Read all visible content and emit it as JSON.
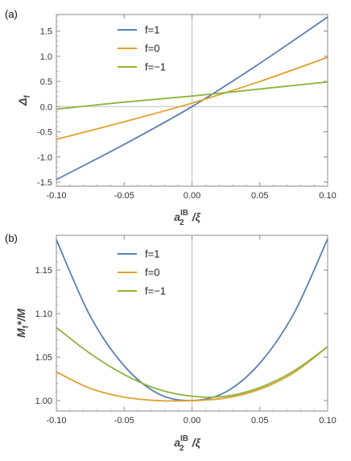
{
  "chart_data": [
    {
      "type": "line",
      "panel_label": "(a)",
      "ylabel": "Δf",
      "xlabel_parts": {
        "base": "a",
        "sub": "2",
        "sup": "IB",
        "suffix": "/ξ"
      },
      "xlim": [
        -0.1,
        0.1
      ],
      "ylim": [
        -1.58,
        1.83
      ],
      "xticks": [
        -0.1,
        -0.05,
        0.0,
        0.05,
        0.1
      ],
      "xtick_labels": [
        "-0.10",
        "-0.05",
        "0.00",
        "0.05",
        "0.10"
      ],
      "yticks": [
        -1.5,
        -1.0,
        -0.5,
        0.0,
        0.5,
        1.0,
        1.5
      ],
      "ytick_labels": [
        "-1.5",
        "-1.0",
        "-0.5",
        "0.0",
        "0.5",
        "1.0",
        "1.5"
      ],
      "legend_position": "top-left",
      "x": [
        -0.1,
        -0.05,
        0.0,
        0.05,
        0.1
      ],
      "series": [
        {
          "name": "f=1",
          "color": "#5b7fb5",
          "values": [
            -1.45,
            -0.75,
            0.0,
            0.86,
            1.78
          ]
        },
        {
          "name": "f=0",
          "color": "#e39f2e",
          "values": [
            -0.65,
            -0.3,
            0.07,
            0.5,
            0.98
          ]
        },
        {
          "name": "f=−1",
          "color": "#8db43f",
          "values": [
            -0.05,
            0.09,
            0.21,
            0.35,
            0.49
          ]
        }
      ]
    },
    {
      "type": "line",
      "panel_label": "(b)",
      "ylabel": "Mf*/M",
      "ylabel_parts": {
        "base": "M",
        "sub": "f",
        "suffix": "*/M"
      },
      "xlabel_parts": {
        "base": "a",
        "sub": "2",
        "sup": "IB",
        "suffix": "/ξ"
      },
      "xlim": [
        -0.1,
        0.1
      ],
      "ylim": [
        0.988,
        1.19
      ],
      "xticks": [
        -0.1,
        -0.05,
        0.0,
        0.05,
        0.1
      ],
      "xtick_labels": [
        "-0.10",
        "-0.05",
        "0.00",
        "0.05",
        "0.10"
      ],
      "yticks": [
        1.0,
        1.05,
        1.1,
        1.15
      ],
      "ytick_labels": [
        "1.00",
        "1.05",
        "1.10",
        "1.15"
      ],
      "legend_position": "top-left",
      "x": [
        -0.1,
        -0.075,
        -0.05,
        -0.025,
        0.0,
        0.025,
        0.05,
        0.075,
        0.1
      ],
      "series": [
        {
          "name": "f=1",
          "color": "#5b7fb5",
          "values": [
            1.185,
            1.097,
            1.04,
            1.008,
            1.0,
            1.01,
            1.043,
            1.1,
            1.186
          ]
        },
        {
          "name": "f=0",
          "color": "#e39f2e",
          "values": [
            1.033,
            1.014,
            1.004,
            1.0,
            1.0,
            1.003,
            1.013,
            1.032,
            1.062
          ]
        },
        {
          "name": "f=−1",
          "color": "#8db43f",
          "values": [
            1.084,
            1.054,
            1.03,
            1.013,
            1.005,
            1.005,
            1.015,
            1.034,
            1.062
          ]
        }
      ]
    }
  ]
}
